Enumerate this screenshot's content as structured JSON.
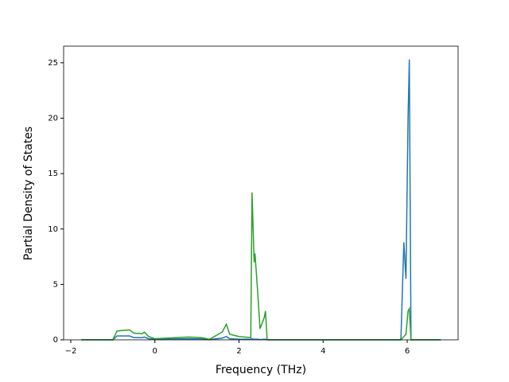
{
  "chart_data": {
    "type": "line",
    "x_label": "Frequency (THz)",
    "y_label": "Partial Density of States",
    "x": [
      -1.75,
      -1.0,
      -0.9,
      -0.6,
      -0.5,
      -0.3,
      -0.25,
      -0.15,
      0,
      0.5,
      0.8,
      1.1,
      1.3,
      1.6,
      1.7,
      1.78,
      2.0,
      2.28,
      2.31,
      2.36,
      2.38,
      2.45,
      2.5,
      2.6,
      2.63,
      2.67,
      5.85,
      5.92,
      5.97,
      6.02,
      6.05,
      6.09,
      6.8
    ],
    "series": [
      {
        "color": "#1f77b4",
        "values": [
          0,
          0,
          0.35,
          0.35,
          0.2,
          0.2,
          0.25,
          0.1,
          0.05,
          0.08,
          0.1,
          0.08,
          0.02,
          0.15,
          0.3,
          0.1,
          0.05,
          0.05,
          0.1,
          0.05,
          0.05,
          0.05,
          0.02,
          0.05,
          0.05,
          0,
          0,
          8.8,
          5.5,
          20,
          25.3,
          0,
          0
        ]
      },
      {
        "color": "#2ca02c",
        "values": [
          0,
          0,
          0.8,
          0.9,
          0.6,
          0.55,
          0.7,
          0.3,
          0.1,
          0.2,
          0.25,
          0.2,
          0.05,
          0.7,
          1.4,
          0.5,
          0.3,
          0.2,
          13.3,
          7.0,
          7.8,
          4.0,
          1.0,
          2.0,
          2.6,
          0,
          0,
          0.3,
          0.5,
          2.6,
          2.8,
          0,
          0
        ]
      }
    ],
    "xlim": [
      -2.17,
      7.21
    ],
    "ylim": [
      0,
      26.5
    ],
    "xticks": [
      {
        "value": -2,
        "label": "−2"
      },
      0,
      2,
      4,
      6
    ],
    "yticks": [
      0,
      5,
      10,
      15,
      20,
      25
    ]
  }
}
